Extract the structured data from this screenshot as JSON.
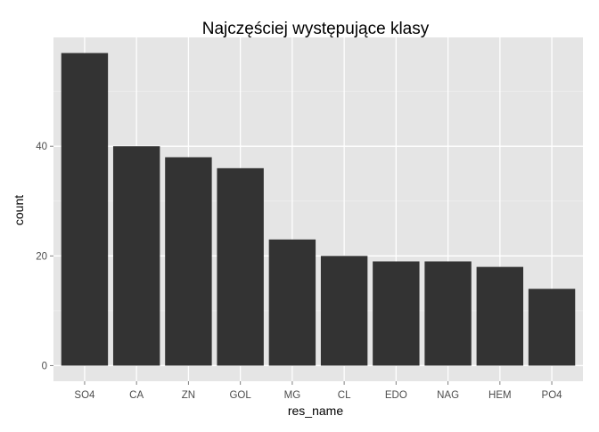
{
  "chart_data": {
    "type": "bar",
    "title": "Najczęściej występujące klasy",
    "xlabel": "res_name",
    "ylabel": "count",
    "categories": [
      "SO4",
      "CA",
      "ZN",
      "GOL",
      "MG",
      "CL",
      "EDO",
      "NAG",
      "HEM",
      "PO4"
    ],
    "values": [
      57,
      40,
      38,
      36,
      23,
      20,
      19,
      19,
      18,
      14
    ],
    "ylim": [
      -2.85,
      59.85
    ],
    "yticks": [
      0,
      20,
      40
    ],
    "ytick_labels": [
      "0",
      "20",
      "40"
    ],
    "grid": true,
    "legend": "none",
    "colors": {
      "bar": "#333333",
      "panel_background": "#e5e5e5",
      "grid_major": "#ffffff",
      "grid_minor": "#f2f2f2",
      "tick_label": "#4d4d4d"
    }
  }
}
